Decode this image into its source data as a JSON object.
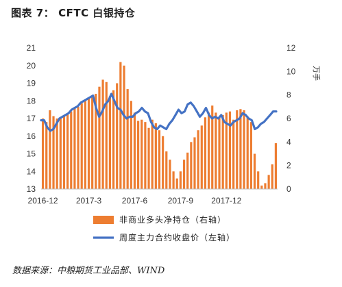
{
  "title": {
    "prefix": "图表 7：",
    "text": "CFTC 白银持仓"
  },
  "source": "数据来源：中粮期货工业品部、WIND",
  "chart_data": {
    "type": "bar+line",
    "left_axis": {
      "min": 13,
      "max": 21,
      "ticks": [
        13,
        14,
        15,
        16,
        17,
        18,
        19,
        20,
        21
      ]
    },
    "right_axis": {
      "min": 0,
      "max": 12,
      "ticks": [
        0,
        2,
        4,
        6,
        8,
        10,
        12
      ],
      "unit": "万手"
    },
    "x_tick_labels": [
      "2016-12",
      "2017-3",
      "2017-6",
      "2017-9",
      "2017-12"
    ],
    "x_tick_index": [
      0,
      13,
      26,
      39,
      52
    ],
    "bar_color": "#ED7D31",
    "line_color": "#4472C4",
    "series": [
      {
        "name": "非商业多头净持仓（右轴）",
        "axis": "right",
        "kind": "bar",
        "values": [
          6.0,
          5.7,
          6.7,
          6.2,
          6.0,
          6.1,
          6.2,
          6.4,
          6.6,
          6.9,
          7.0,
          7.3,
          7.5,
          7.7,
          7.8,
          8.1,
          8.7,
          9.3,
          9.1,
          7.9,
          8.4,
          9.0,
          10.8,
          10.5,
          8.5,
          7.5,
          6.5,
          5.8,
          5.9,
          5.7,
          5.2,
          5.9,
          5.6,
          5.0,
          4.5,
          3.2,
          2.5,
          1.5,
          0.9,
          1.5,
          2.5,
          3.1,
          4.0,
          4.4,
          5.0,
          5.4,
          6.1,
          6.5,
          7.1,
          6.5,
          6.1,
          6.3,
          6.5,
          6.6,
          5.9,
          6.7,
          6.8,
          6.7,
          6.1,
          5.7,
          3.0,
          1.5,
          0.3,
          0.5,
          1.2,
          2.1,
          3.9
        ]
      },
      {
        "name": "周度主力合约收盘价（左轴）",
        "axis": "left",
        "kind": "line",
        "values": [
          16.9,
          16.9,
          16.5,
          16.3,
          16.4,
          16.7,
          17.0,
          17.1,
          17.2,
          17.3,
          17.5,
          17.6,
          17.7,
          17.9,
          18.0,
          18.1,
          18.2,
          18.3,
          17.6,
          17.1,
          17.4,
          17.8,
          18.0,
          18.4,
          18.0,
          17.6,
          17.5,
          17.2,
          17.0,
          17.1,
          17.1,
          17.3,
          17.4,
          17.6,
          17.4,
          17.3,
          16.8,
          16.5,
          16.4,
          16.6,
          16.5,
          16.4,
          16.7,
          16.9,
          17.2,
          17.5,
          17.3,
          17.4,
          17.8,
          17.9,
          17.7,
          17.4,
          17.1,
          17.3,
          17.6,
          17.2,
          17.0,
          17.1,
          17.0,
          17.2,
          16.8,
          16.7,
          16.6,
          16.8,
          16.9,
          17.0,
          17.3,
          17.2,
          17.0,
          16.9,
          16.4,
          16.5,
          16.7,
          16.8,
          17.0,
          17.2,
          17.4,
          17.4
        ]
      }
    ]
  }
}
